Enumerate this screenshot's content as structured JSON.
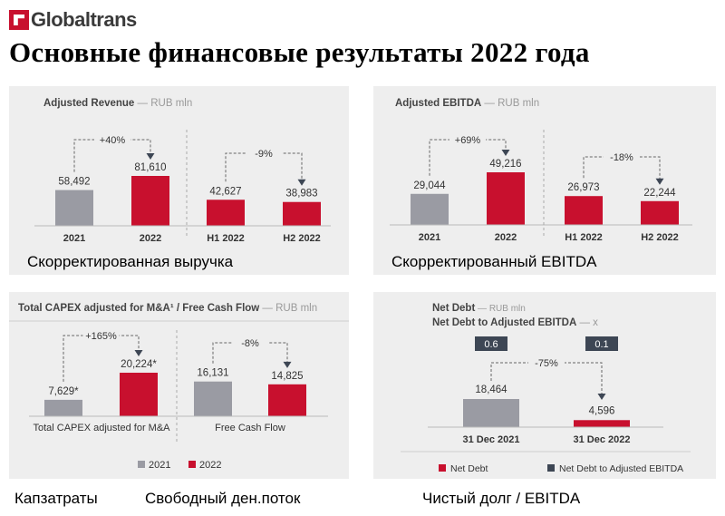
{
  "brand": {
    "logo_text": "Globaltrans",
    "logo_color": "#c8102e"
  },
  "page_title": "Основные финансовые результаты 2022 года",
  "colors": {
    "gray": "#9a9ba3",
    "red": "#c8102e",
    "dark": "#3d4654",
    "panel_bg": "#eeeeee"
  },
  "captions": {
    "revenue": "Скорректированная выручка",
    "ebitda": "Скорректированный EBITDA",
    "capex": "Капзатраты",
    "fcf": "Свободный ден.поток",
    "net_debt": "Чистый долг / EBITDA"
  },
  "chart_data": [
    {
      "id": "revenue",
      "type": "bar",
      "title": "Adjusted Revenue",
      "unit": "— RUB mln",
      "categories": [
        "2021",
        "2022",
        "H1 2022",
        "H2 2022"
      ],
      "values": [
        58492,
        81610,
        42627,
        38983
      ],
      "value_labels": [
        "58,492",
        "81,610",
        "42,627",
        "38,983"
      ],
      "bar_colors": [
        "gray",
        "red",
        "red",
        "red"
      ],
      "ylim": [
        0,
        81610
      ],
      "changes": [
        {
          "label": "+40%",
          "from": 0,
          "to": 1
        },
        {
          "label": "-9%",
          "from": 2,
          "to": 3
        }
      ]
    },
    {
      "id": "ebitda",
      "type": "bar",
      "title": "Adjusted EBITDA",
      "unit": "— RUB mln",
      "categories": [
        "2021",
        "2022",
        "H1 2022",
        "H2 2022"
      ],
      "values": [
        29044,
        49216,
        26973,
        22244
      ],
      "value_labels": [
        "29,044",
        "49,216",
        "26,973",
        "22,244"
      ],
      "bar_colors": [
        "gray",
        "red",
        "red",
        "red"
      ],
      "ylim": [
        0,
        49216
      ],
      "changes": [
        {
          "label": "+69%",
          "from": 0,
          "to": 1
        },
        {
          "label": "-18%",
          "from": 2,
          "to": 3
        }
      ]
    },
    {
      "id": "capex",
      "type": "bar",
      "title": "Total CAPEX adjusted for M&A¹ / Free Cash Flow",
      "unit": "— RUB mln",
      "groups": [
        "Total CAPEX adjusted for M&A",
        "Free Cash Flow"
      ],
      "values": [
        7629,
        20224,
        16131,
        14825
      ],
      "value_labels": [
        "7,629*",
        "20,224*",
        "16,131",
        "14,825"
      ],
      "bar_colors": [
        "gray",
        "red",
        "gray",
        "red"
      ],
      "ylim": [
        0,
        20224
      ],
      "changes": [
        {
          "label": "+165%",
          "from": 0,
          "to": 1
        },
        {
          "label": "-8%",
          "from": 2,
          "to": 3
        }
      ],
      "legend": [
        {
          "name": "2021",
          "color": "gray"
        },
        {
          "name": "2022",
          "color": "red"
        }
      ]
    },
    {
      "id": "net_debt",
      "type": "bar",
      "title": "Net Debt",
      "unit": "— RUB mln",
      "subtitle": "Net Debt to Adjusted EBITDA",
      "subtitle_unit": "— x",
      "categories": [
        "31 Dec 2021",
        "31 Dec 2022"
      ],
      "values": [
        18464,
        4596
      ],
      "value_labels": [
        "18,464",
        "4,596"
      ],
      "bar_colors": [
        "gray",
        "red"
      ],
      "ratios": [
        "0.6",
        "0.1"
      ],
      "ylim": [
        0,
        18464
      ],
      "changes": [
        {
          "label": "-75%",
          "from": 0,
          "to": 1
        }
      ],
      "legend": [
        {
          "name": "Net Debt",
          "color": "red"
        },
        {
          "name": "Net Debt to Adjusted EBITDA",
          "color": "dark"
        }
      ]
    }
  ]
}
